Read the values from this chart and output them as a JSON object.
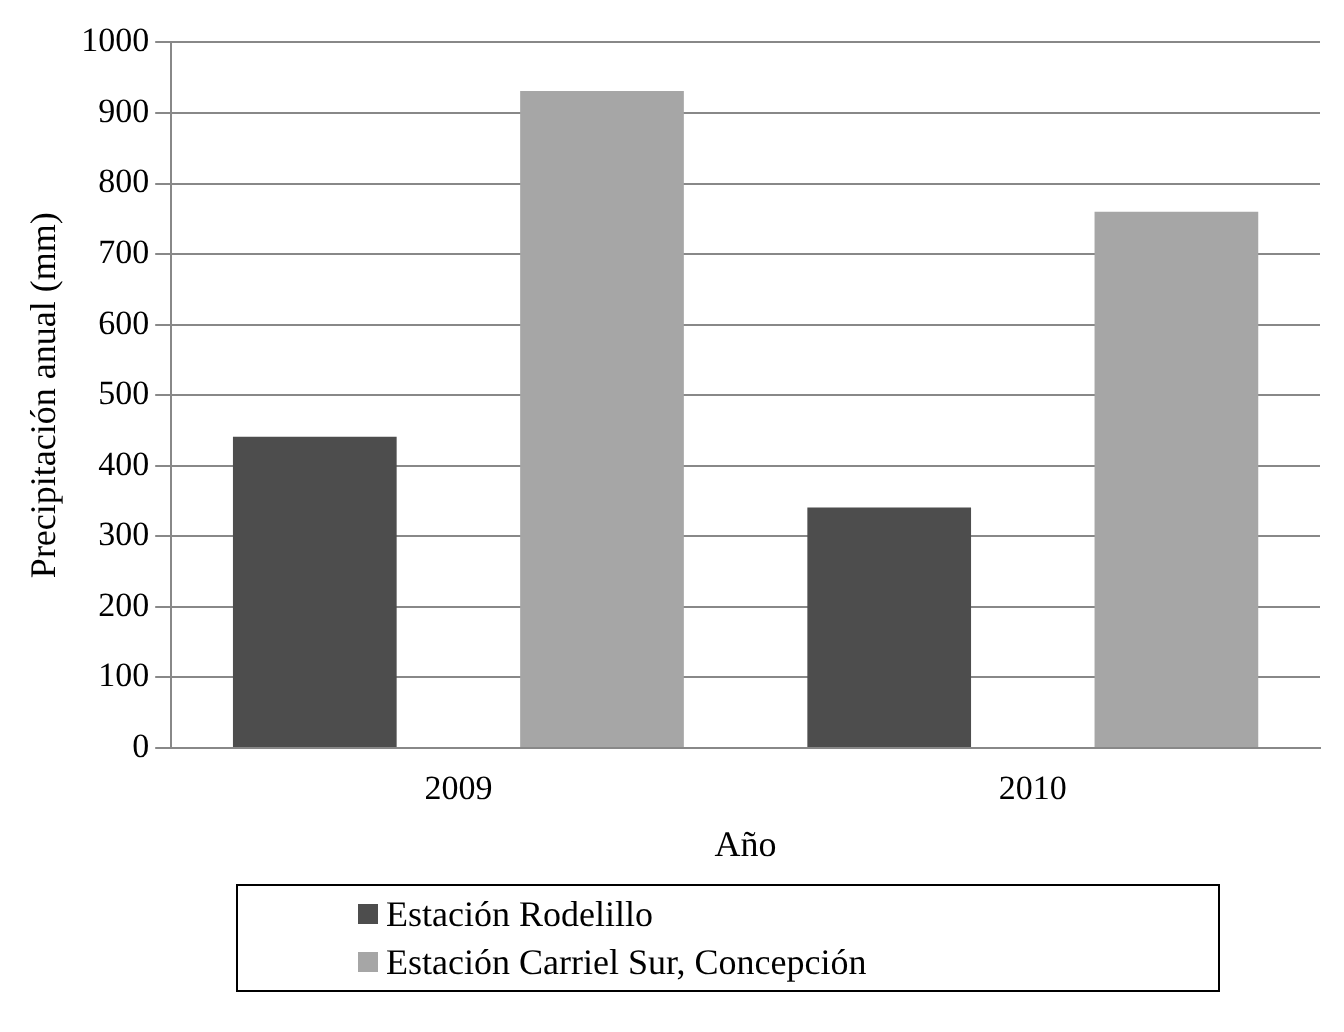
{
  "chart_data": {
    "type": "bar",
    "xlabel": "Año",
    "ylabel": "Precipitación anual (mm)",
    "categories": [
      "2009",
      "2010"
    ],
    "series": [
      {
        "name": "Estación Rodelillo",
        "color": "#4d4d4d",
        "values": [
          441,
          341
        ]
      },
      {
        "name": "Estación Carriel Sur, Concepción",
        "color": "#a6a6a6",
        "values": [
          931,
          760
        ]
      }
    ],
    "ylim": [
      0,
      1000
    ],
    "yticks": [
      0,
      100,
      200,
      300,
      400,
      500,
      600,
      700,
      800,
      900,
      1000
    ],
    "grid": "y",
    "legend": "bottom"
  }
}
